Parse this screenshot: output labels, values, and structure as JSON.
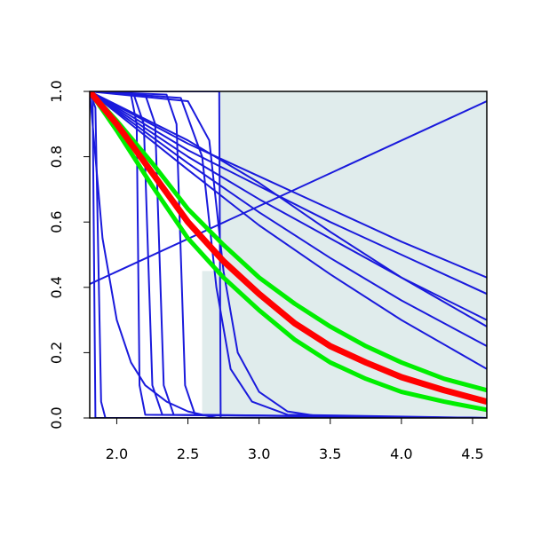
{
  "chart_data": {
    "type": "line",
    "xlim": [
      1.81,
      4.6
    ],
    "ylim": [
      0,
      1
    ],
    "xticks": [
      {
        "value": 2,
        "label": "2.0"
      },
      {
        "value": 2.5,
        "label": "2.5"
      },
      {
        "value": 3,
        "label": "3.0"
      },
      {
        "value": 3.5,
        "label": "3.5"
      },
      {
        "value": 4,
        "label": "4.0"
      },
      {
        "value": 4.5,
        "label": "4.5"
      }
    ],
    "yticks": [
      {
        "value": 0,
        "label": "0.0"
      },
      {
        "value": 0.2,
        "label": "0.2"
      },
      {
        "value": 0.4,
        "label": "0.4"
      },
      {
        "value": 0.6,
        "label": "0.6"
      },
      {
        "value": 0.8,
        "label": "0.8"
      },
      {
        "value": 1,
        "label": "1.0"
      }
    ],
    "shade": {
      "color": "#e0ecec",
      "x": [
        2.6,
        4.6,
        4.6,
        2.72,
        2.72,
        2.6
      ],
      "y": [
        0,
        0,
        1,
        1,
        0.45,
        0.45
      ]
    },
    "series": [
      {
        "color": "#1a1adc",
        "line_width": 2,
        "x": [
          1.81,
          4.6
        ],
        "values": [
          0.41,
          0.97
        ]
      },
      {
        "color": "#1a1adc",
        "line_width": 2,
        "x": [
          1.81,
          2.5,
          3.0,
          3.5,
          4.0,
          4.6
        ],
        "values": [
          1,
          0.84,
          0.74,
          0.64,
          0.54,
          0.43
        ]
      },
      {
        "color": "#1a1adc",
        "line_width": 2,
        "x": [
          1.81,
          2.5,
          3.0,
          3.5,
          4.0,
          4.6
        ],
        "values": [
          1,
          0.82,
          0.71,
          0.6,
          0.5,
          0.38
        ]
      },
      {
        "color": "#1a1adc",
        "line_width": 2,
        "x": [
          1.81,
          2.5,
          3.0,
          3.5,
          4.0,
          4.6
        ],
        "values": [
          1,
          0.85,
          0.72,
          0.57,
          0.43,
          0.28
        ]
      },
      {
        "color": "#1a1adc",
        "line_width": 2,
        "x": [
          1.81,
          2.5,
          3.0,
          3.5,
          4.0,
          4.6
        ],
        "values": [
          1,
          0.8,
          0.67,
          0.55,
          0.43,
          0.3
        ]
      },
      {
        "color": "#1a1adc",
        "line_width": 2,
        "x": [
          1.81,
          2.5,
          3.0,
          3.5,
          4.0,
          4.6
        ],
        "values": [
          1,
          0.78,
          0.63,
          0.49,
          0.36,
          0.22
        ]
      },
      {
        "color": "#1a1adc",
        "line_width": 2,
        "x": [
          1.81,
          2.5,
          3.0,
          3.5,
          4.0,
          4.6
        ],
        "values": [
          1,
          0.76,
          0.59,
          0.44,
          0.3,
          0.15
        ]
      },
      {
        "color": "#1a1adc",
        "line_width": 2,
        "x": [
          1.81,
          2.7,
          2.72,
          2.73,
          4.6
        ],
        "values": [
          1,
          1,
          1,
          0,
          0
        ]
      },
      {
        "color": "#1a1adc",
        "line_width": 2,
        "x": [
          1.81,
          1.83,
          1.84,
          1.85,
          4.6
        ],
        "values": [
          1,
          1,
          0.5,
          0,
          0
        ]
      },
      {
        "color": "#1a1adc",
        "line_width": 2,
        "x": [
          1.81,
          1.85,
          1.87,
          1.89,
          1.92,
          4.6
        ],
        "values": [
          1,
          0.95,
          0.5,
          0.05,
          0,
          0
        ]
      },
      {
        "color": "#1a1adc",
        "line_width": 2,
        "x": [
          1.81,
          2.1,
          2.14,
          2.15,
          2.16,
          2.2,
          4.6
        ],
        "values": [
          1,
          0.99,
          0.9,
          0.5,
          0.1,
          0.01,
          0
        ]
      },
      {
        "color": "#1a1adc",
        "line_width": 2,
        "x": [
          1.81,
          2.12,
          2.19,
          2.22,
          2.25,
          2.32,
          4.6
        ],
        "values": [
          1,
          0.99,
          0.9,
          0.5,
          0.1,
          0.01,
          0
        ]
      },
      {
        "color": "#1a1adc",
        "line_width": 2,
        "x": [
          1.81,
          2.2,
          2.27,
          2.3,
          2.33,
          2.4,
          4.6
        ],
        "values": [
          1,
          0.99,
          0.9,
          0.5,
          0.1,
          0.01,
          0
        ]
      },
      {
        "color": "#1a1adc",
        "line_width": 2,
        "x": [
          1.81,
          2.35,
          2.42,
          2.45,
          2.48,
          2.55,
          4.6
        ],
        "values": [
          1,
          0.99,
          0.9,
          0.5,
          0.1,
          0.01,
          0
        ]
      },
      {
        "color": "#1a1adc",
        "line_width": 2,
        "x": [
          1.81,
          1.9,
          2.0,
          2.1,
          2.2,
          2.35,
          2.5,
          2.7,
          4.6
        ],
        "values": [
          1,
          0.55,
          0.3,
          0.17,
          0.1,
          0.05,
          0.02,
          0,
          0
        ]
      },
      {
        "color": "#1a1adc",
        "line_width": 2,
        "x": [
          1.81,
          2.5,
          2.65,
          2.75,
          2.85,
          3.0,
          3.2,
          3.5,
          4.6
        ],
        "values": [
          1,
          0.97,
          0.85,
          0.45,
          0.2,
          0.08,
          0.02,
          0,
          0
        ]
      },
      {
        "color": "#1a1adc",
        "line_width": 2,
        "x": [
          1.81,
          2.45,
          2.6,
          2.7,
          2.8,
          2.95,
          3.2,
          4.6
        ],
        "values": [
          1,
          0.98,
          0.8,
          0.4,
          0.15,
          0.05,
          0.01,
          0
        ]
      },
      {
        "color": "#00ee00",
        "line_width": 5,
        "x": [
          1.81,
          2.0,
          2.25,
          2.5,
          2.75,
          3.0,
          3.25,
          3.5,
          3.75,
          4.0,
          4.3,
          4.6
        ],
        "values": [
          1,
          0.91,
          0.78,
          0.64,
          0.53,
          0.43,
          0.35,
          0.28,
          0.22,
          0.17,
          0.12,
          0.085
        ]
      },
      {
        "color": "#00ee00",
        "line_width": 5,
        "x": [
          1.81,
          2.0,
          2.25,
          2.5,
          2.75,
          3.0,
          3.25,
          3.5,
          3.75,
          4.0,
          4.3,
          4.6
        ],
        "values": [
          1,
          0.88,
          0.71,
          0.55,
          0.43,
          0.33,
          0.24,
          0.17,
          0.12,
          0.08,
          0.05,
          0.025
        ]
      },
      {
        "color": "#ff0000",
        "line_width": 7,
        "x": [
          1.81,
          2.0,
          2.25,
          2.5,
          2.75,
          3.0,
          3.25,
          3.5,
          3.75,
          4.0,
          4.3,
          4.6
        ],
        "values": [
          1,
          0.9,
          0.75,
          0.6,
          0.48,
          0.38,
          0.29,
          0.22,
          0.17,
          0.125,
          0.085,
          0.05
        ]
      }
    ]
  }
}
